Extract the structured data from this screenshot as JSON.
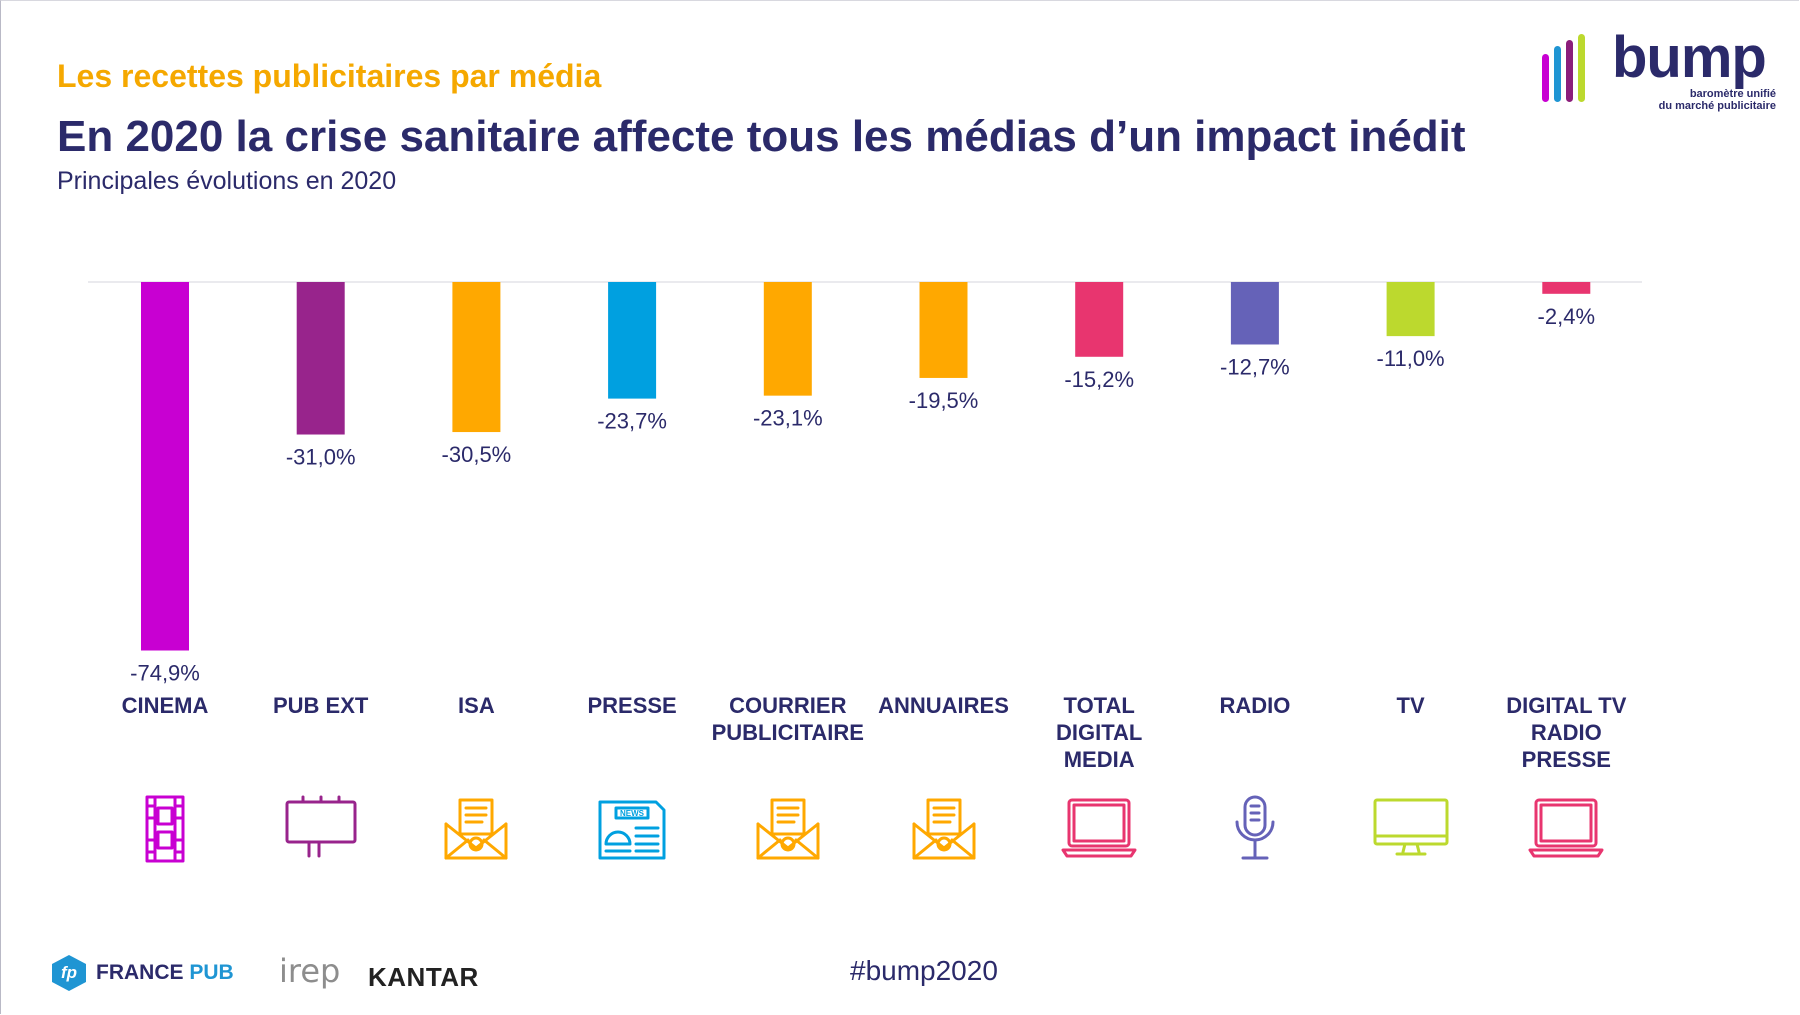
{
  "header": {
    "supertitle": "Les recettes publicitaires par média",
    "title": "En 2020 la crise sanitaire affecte tous les médias d’un impact inédit",
    "subtitle": "Principales évolutions en 2020"
  },
  "logo": {
    "word": "bump",
    "tagline_1": "baromètre unifié",
    "tagline_2": "du marché publicitaire"
  },
  "chart_data": {
    "type": "bar",
    "categories": [
      "CINEMA",
      "PUB EXT",
      "ISA",
      "PRESSE",
      "COURRIER\nPUBLICITAIRE",
      "ANNUAIRES",
      "TOTAL DIGITAL\nMEDIA",
      "RADIO",
      "TV",
      "DIGITAL TV\nRADIO PRESSE"
    ],
    "values": [
      -74.9,
      -31.0,
      -30.5,
      -23.7,
      -23.1,
      -19.5,
      -15.2,
      -12.7,
      -11.0,
      -2.4
    ],
    "value_labels": [
      "-74,9%",
      "-31,0%",
      "-30,5%",
      "-23,7%",
      "-23,1%",
      "-19,5%",
      "-15,2%",
      "-12,7%",
      "-11,0%",
      "-2,4%"
    ],
    "colors": [
      "#c800d2",
      "#98248c",
      "#ffa800",
      "#00a0e0",
      "#ffa800",
      "#ffa800",
      "#e8356f",
      "#6562b8",
      "#bcd92e",
      "#e8356f"
    ],
    "icons": [
      "film-strip-icon",
      "billboard-icon",
      "mail-envelope-icon",
      "newspaper-icon",
      "mail-envelope-icon",
      "mail-envelope-icon",
      "laptop-icon",
      "microphone-icon",
      "monitor-icon",
      "laptop-icon"
    ],
    "icon_news_text": "NEWS",
    "ylim": [
      -75,
      0
    ],
    "grid": false,
    "legend": "none"
  },
  "footer": {
    "france_pub_mark": "fp",
    "france_pub_word1": "FRANCE",
    "france_pub_word2": "PUB",
    "irep": "irep",
    "kantar": "KANTAR",
    "hashtag": "#bump2020"
  }
}
